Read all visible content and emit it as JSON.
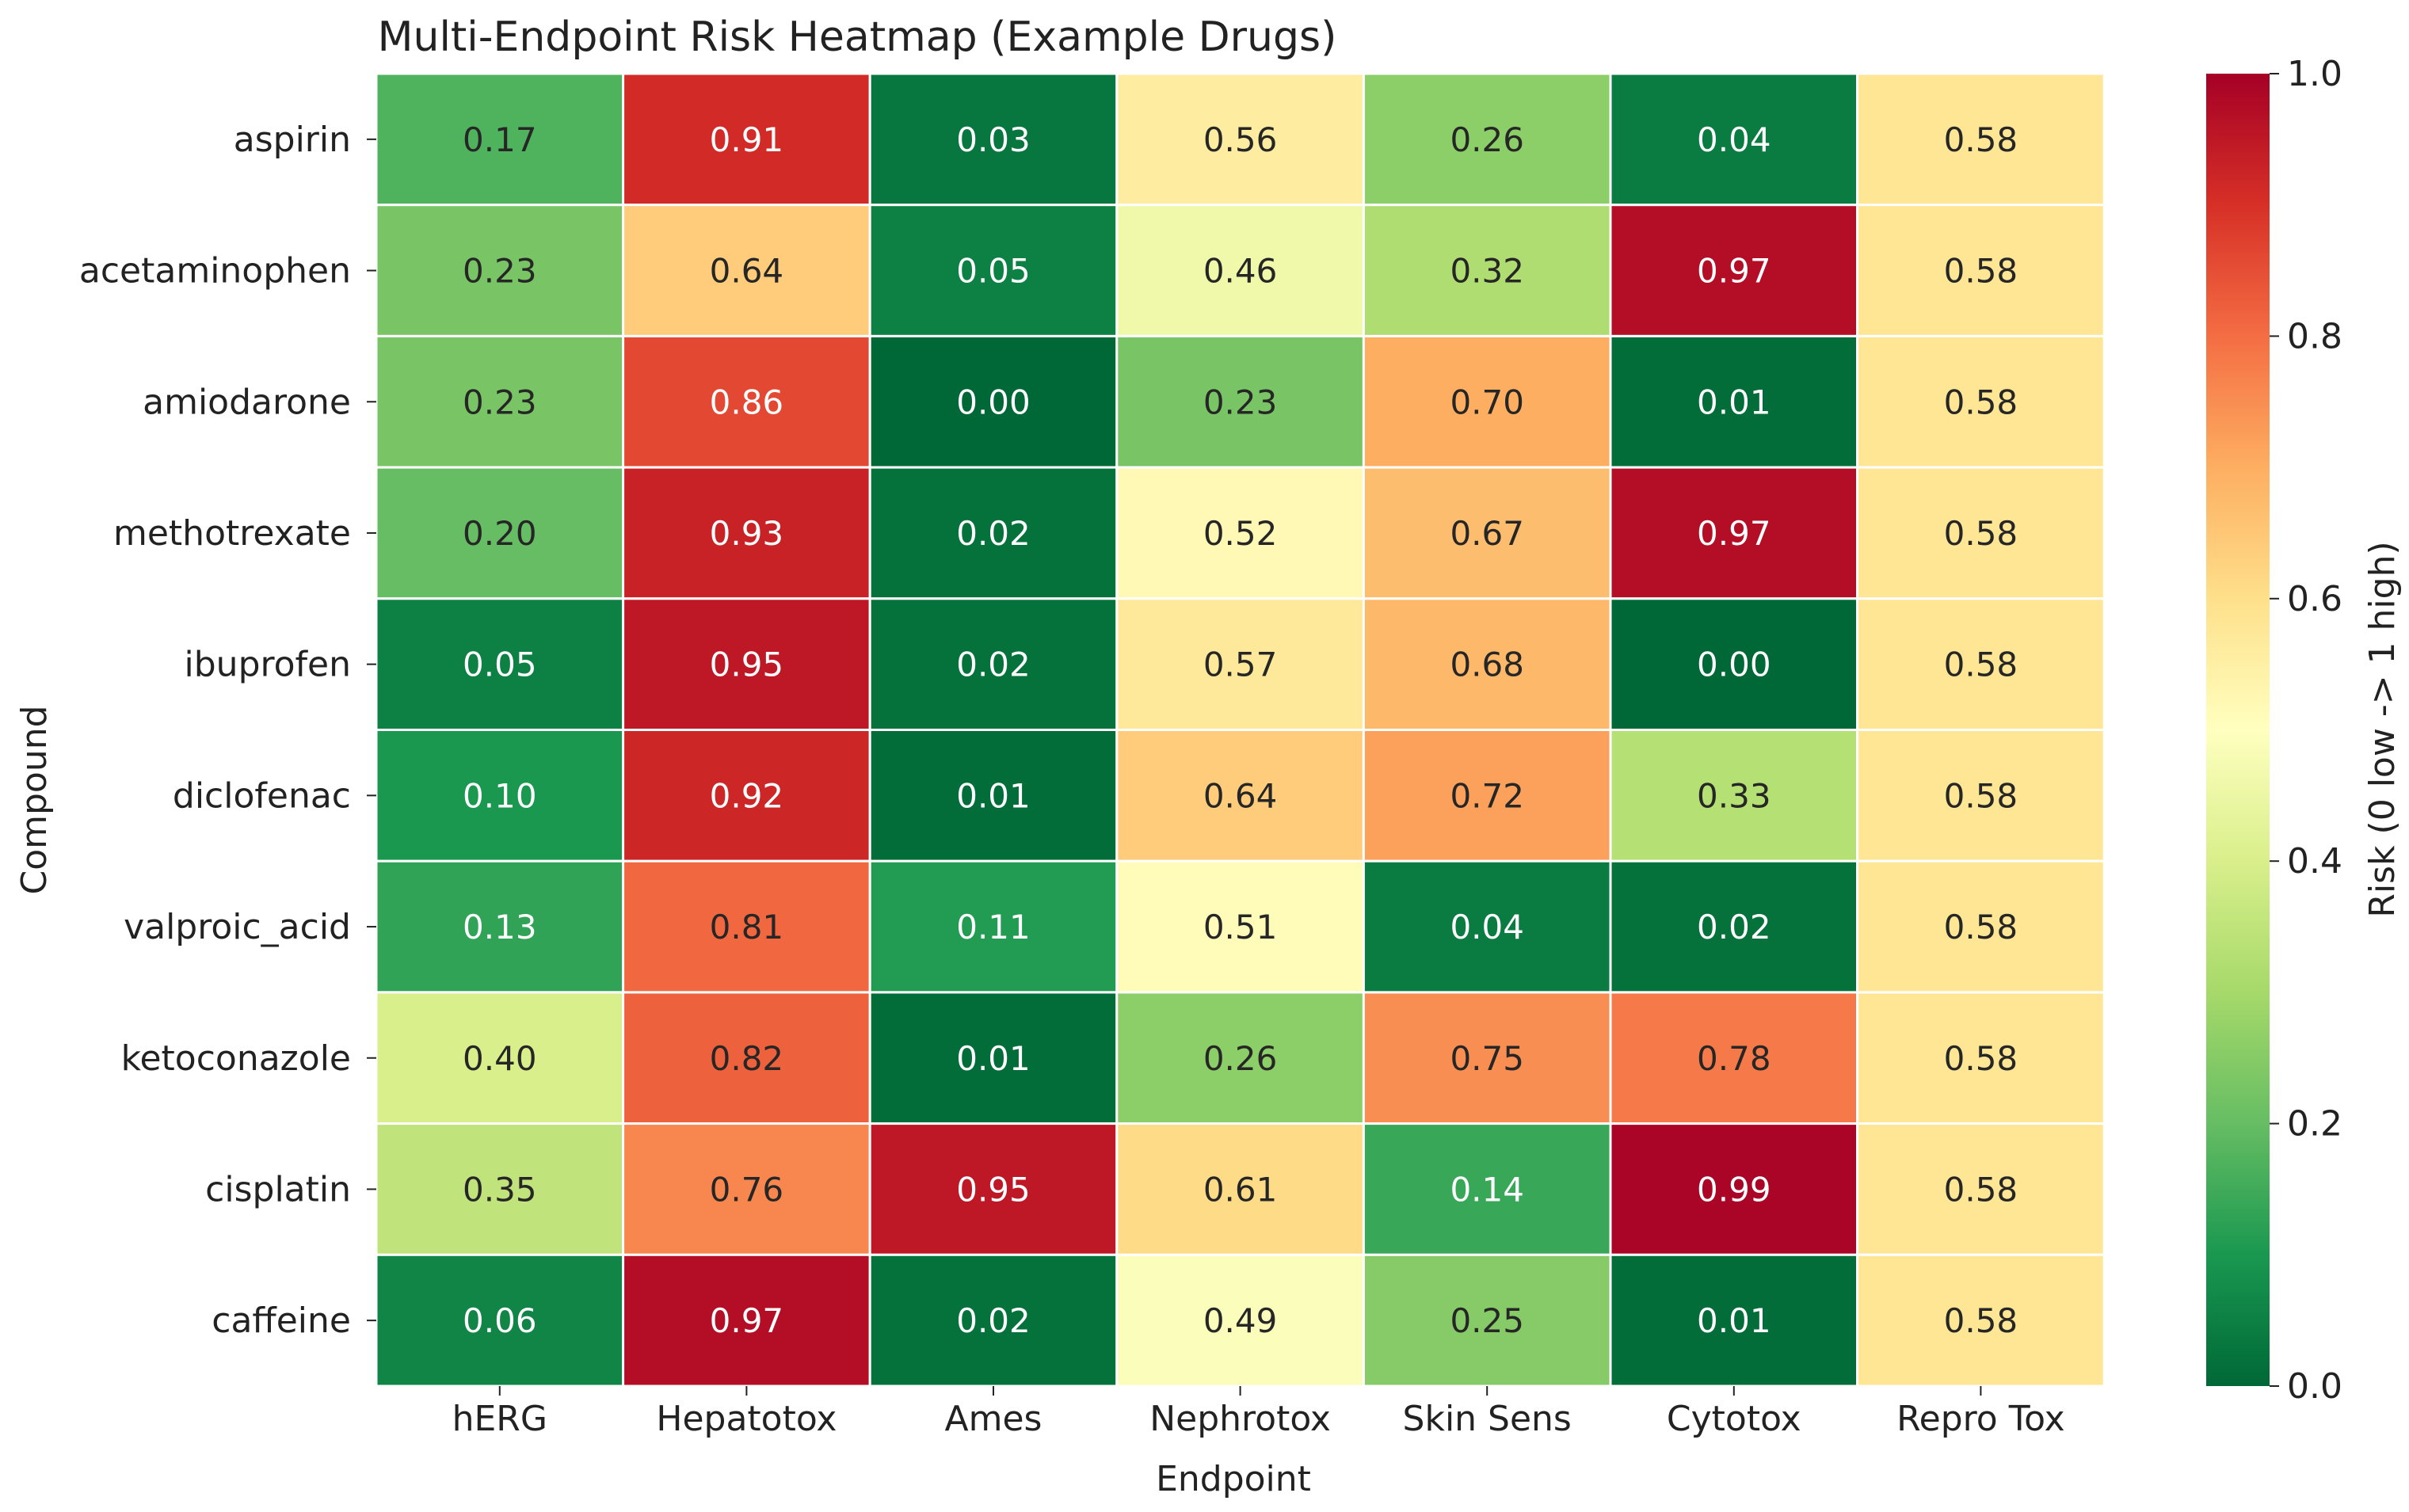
{
  "chart_data": {
    "type": "heatmap",
    "title": "Multi-Endpoint Risk Heatmap (Example Drugs)",
    "xlabel": "Endpoint",
    "ylabel": "Compound",
    "x_categories": [
      "hERG",
      "Hepatotox",
      "Ames",
      "Nephrotox",
      "Skin Sens",
      "Cytotox",
      "Repro Tox"
    ],
    "y_categories": [
      "aspirin",
      "acetaminophen",
      "amiodarone",
      "methotrexate",
      "ibuprofen",
      "diclofenac",
      "valproic_acid",
      "ketoconazole",
      "cisplatin",
      "caffeine"
    ],
    "values": [
      [
        0.17,
        0.91,
        0.03,
        0.56,
        0.26,
        0.04,
        0.58
      ],
      [
        0.23,
        0.64,
        0.05,
        0.46,
        0.32,
        0.97,
        0.58
      ],
      [
        0.23,
        0.86,
        0.0,
        0.23,
        0.7,
        0.01,
        0.58
      ],
      [
        0.2,
        0.93,
        0.02,
        0.52,
        0.67,
        0.97,
        0.58
      ],
      [
        0.05,
        0.95,
        0.02,
        0.57,
        0.68,
        0.0,
        0.58
      ],
      [
        0.1,
        0.92,
        0.01,
        0.64,
        0.72,
        0.33,
        0.58
      ],
      [
        0.13,
        0.81,
        0.11,
        0.51,
        0.04,
        0.02,
        0.58
      ],
      [
        0.4,
        0.82,
        0.01,
        0.26,
        0.75,
        0.78,
        0.58
      ],
      [
        0.35,
        0.76,
        0.95,
        0.61,
        0.14,
        0.99,
        0.58
      ],
      [
        0.06,
        0.97,
        0.02,
        0.49,
        0.25,
        0.01,
        0.58
      ]
    ],
    "value_range": [
      0.0,
      1.0
    ],
    "colormap": "RdYlGn_r",
    "colorbar": {
      "label": "Risk (0 low -> 1 high)",
      "ticks": [
        "0.0",
        "0.2",
        "0.4",
        "0.6",
        "0.8",
        "1.0"
      ]
    },
    "colormap_stops": [
      "#006837",
      "#1a9850",
      "#66bd63",
      "#a6d96a",
      "#d9ef8b",
      "#ffffbf",
      "#fee08b",
      "#fdae61",
      "#f46d43",
      "#d73027",
      "#a50026"
    ],
    "grid": false,
    "legend": "colorbar-right"
  }
}
